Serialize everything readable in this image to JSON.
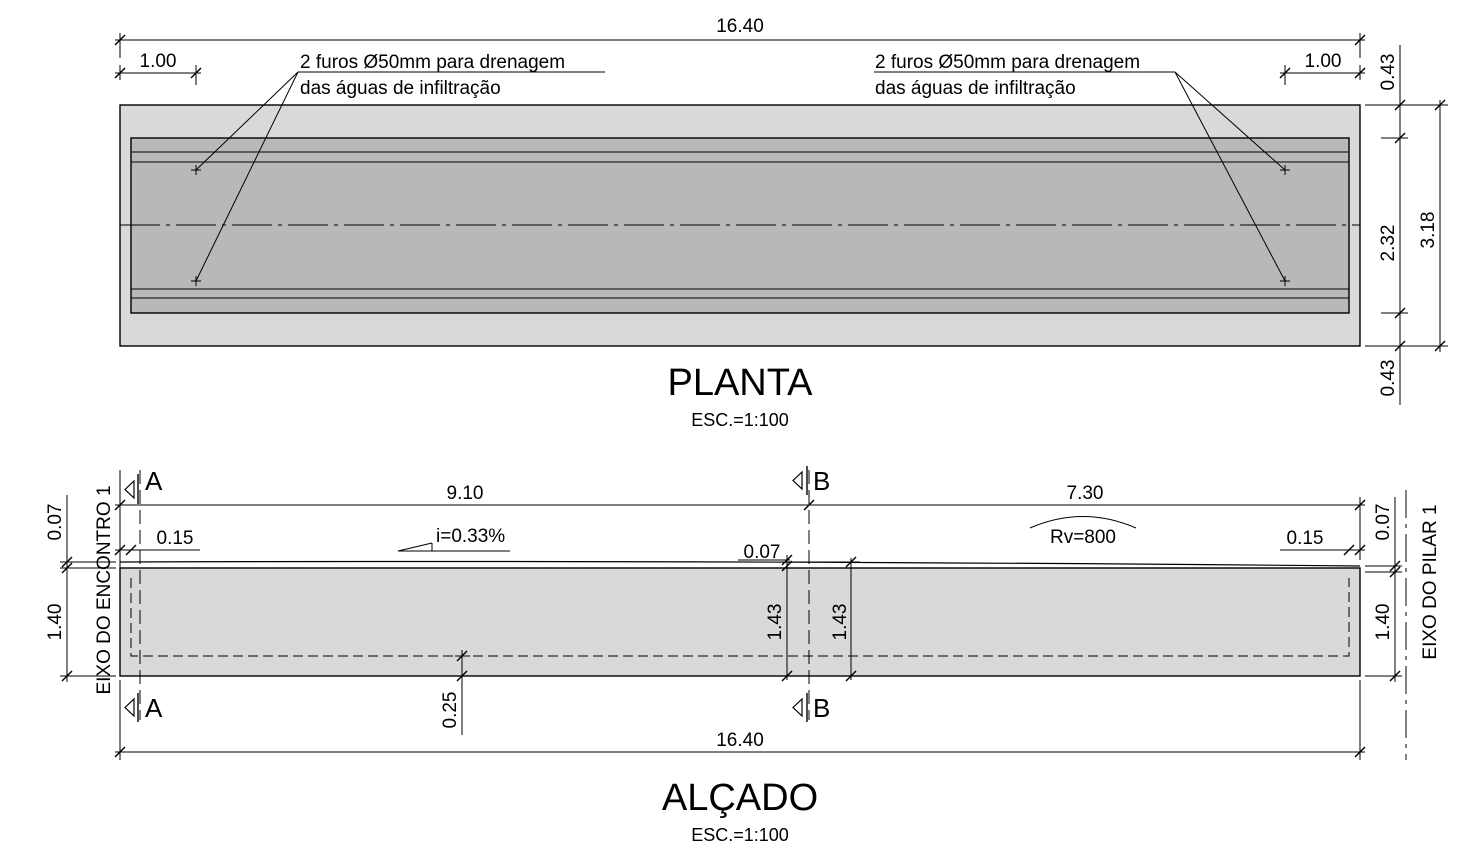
{
  "plan": {
    "title": "PLANTA",
    "scale": "ESC.=1:100",
    "dims": {
      "total_length": "16.40",
      "left_offset": "1.00",
      "right_offset": "1.00",
      "top_edge": "0.43",
      "inner_width": "2.32",
      "bottom_edge": "0.43",
      "overall_width": "3.18"
    },
    "notes": {
      "left_line1": "2 furos Ø50mm para drenagem",
      "left_line2": "das águas de infiltração",
      "right_line1": "2 furos Ø50mm para drenagem",
      "right_line2": "das águas de infiltração"
    }
  },
  "elevation": {
    "title": "ALÇADO",
    "scale": "ESC.=1:100",
    "dims": {
      "left_span": "9.10",
      "right_span": "7.30",
      "left_top": "0.07",
      "right_top": "0.07",
      "left_end": "0.15",
      "right_end": "0.15",
      "mid_top": "0.07",
      "height_left": "1.40",
      "height_right": "1.40",
      "height_mid_left": "1.43",
      "height_mid_right": "1.43",
      "bottom_offset": "0.25",
      "total_length": "16.40"
    },
    "slope": "i=0.33%",
    "curve": "Rv=800",
    "axis_left": "EIXO DO ENCONTRO 1",
    "axis_right": "EIXO DO PILAR 1",
    "sections": {
      "a_top": "A",
      "a_bottom": "A",
      "b_top": "B",
      "b_bottom": "B"
    }
  },
  "colors": {
    "plan_outer": "#d9d9d9",
    "plan_inner": "#b8b8b8",
    "elevation_fill": "#d9d9d9",
    "line": "#000000"
  }
}
